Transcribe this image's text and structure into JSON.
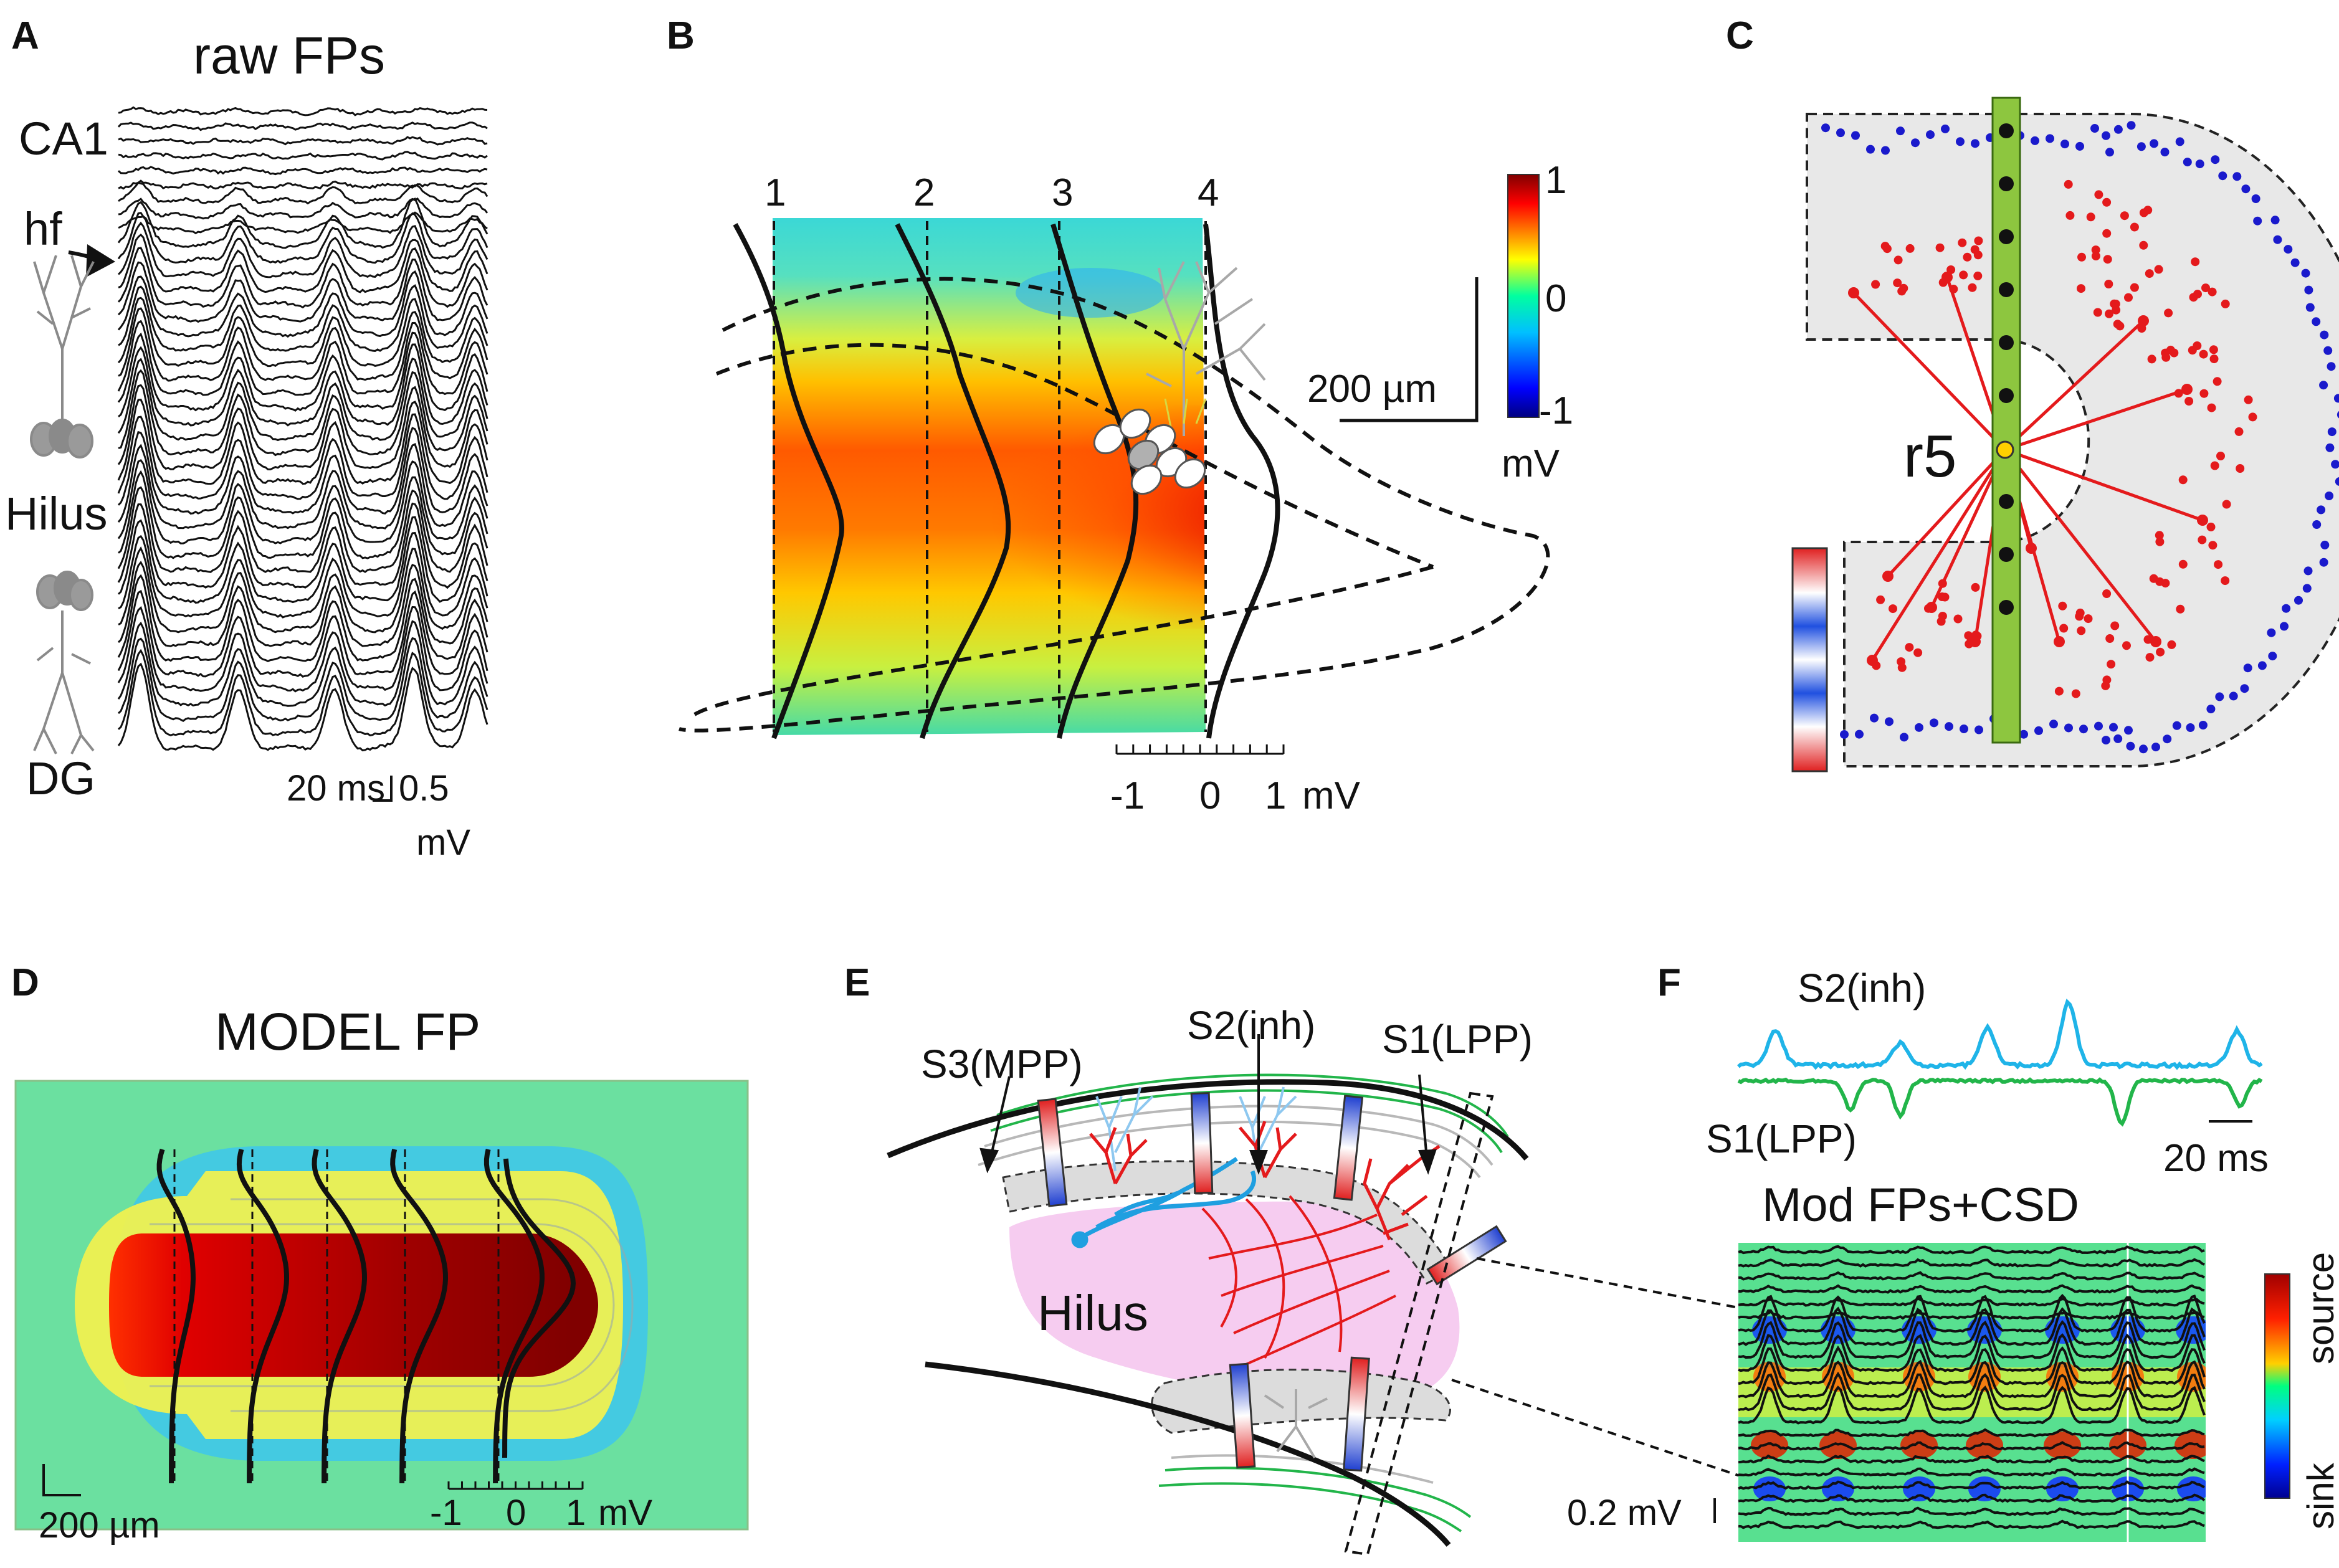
{
  "panels": {
    "A": {
      "letter": "A",
      "title": "raw FPs",
      "layers": [
        "CA1",
        "hf",
        "Hilus",
        "DG"
      ],
      "scale_time": "20 ms",
      "scale_volt_value": "0.5",
      "scale_volt_unit": "mV",
      "trace_count": 44
    },
    "B": {
      "letter": "B",
      "electrode_numbers": [
        "1",
        "2",
        "3",
        "4"
      ],
      "colorbar_ticks": [
        "1",
        "0",
        "-1"
      ],
      "colorbar_unit": "mV",
      "scale_distance": "200 µm",
      "axis_ticks": [
        "-1",
        "0",
        "1"
      ],
      "axis_unit": "mV",
      "colorbar_range": [
        -1,
        1
      ]
    },
    "C": {
      "letter": "C",
      "electrode_label": "r5",
      "electrode_contacts": 9
    },
    "D": {
      "letter": "D",
      "title": "MODEL FP",
      "scale_distance": "200 µm",
      "axis_ticks": [
        "-1",
        "0",
        "1"
      ],
      "axis_unit": "mV",
      "profile_count": 6
    },
    "E": {
      "letter": "E",
      "s3_label": "S3(MPP)",
      "s2_label": "S2(inh)",
      "s1_label": "S1(LPP)",
      "hilus_label": "Hilus"
    },
    "F": {
      "letter": "F",
      "s2_label": "S2(inh)",
      "s1_label": "S1(LPP)",
      "scale_time": "20 ms",
      "title": "Mod FPs+CSD",
      "colorbar_top": "source",
      "colorbar_bottom": "sink",
      "scale_volt": "0.2 mV"
    }
  },
  "colors": {
    "s2_trace": "#1fb4e8",
    "s1_trace": "#22b54a",
    "red_dots": "#e41a1c",
    "blue_dots": "#1a1acc",
    "electrode": "#8dc63f",
    "hilus_fill": "#f6ccf0",
    "red_fibers": "#e41a1c",
    "blue_cell": "#1f9fe0"
  }
}
